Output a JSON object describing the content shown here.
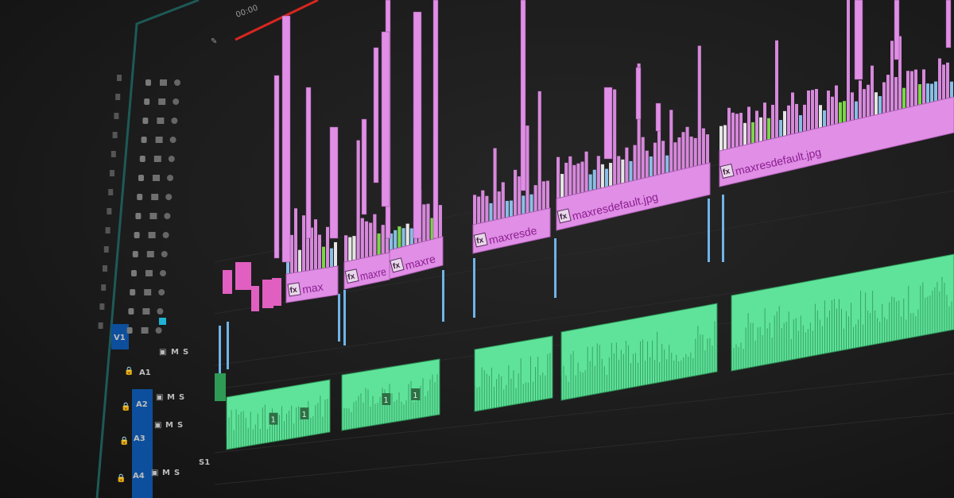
{
  "ruler": {
    "timecode": "00:00"
  },
  "tracks": [
    {
      "id": "V1",
      "targeted": true
    },
    {
      "id": "A1",
      "targeted": false
    },
    {
      "id": "A2",
      "targeted": true
    },
    {
      "id": "A3",
      "targeted": true
    },
    {
      "id": "A4",
      "targeted": true
    }
  ],
  "track_buttons": {
    "mute": "M",
    "solo": "S",
    "submix": "S1"
  },
  "video_clips": [
    {
      "name": "max",
      "fx": "fx"
    },
    {
      "name": "maxre",
      "fx": "fx"
    },
    {
      "name": "maxre",
      "fx": "fx"
    },
    {
      "name": "maxresde",
      "fx": "fx"
    },
    {
      "name": "maxresdefault.jpg",
      "fx": "fx"
    },
    {
      "name": "maxresdefault.jpg",
      "fx": "fx"
    }
  ],
  "audio_clips": [
    {
      "marker": "1"
    },
    {
      "marker": "1"
    },
    {
      "marker": ""
    },
    {
      "marker": ""
    },
    {
      "marker": ""
    }
  ],
  "colors": {
    "video_clip": "#e08ee6",
    "audio_clip": "#5fe39a",
    "track_target": "#0d4f9c",
    "work_area": "#d8261f",
    "panel_border": "#1d5a56",
    "background": "#1c1c1c"
  }
}
